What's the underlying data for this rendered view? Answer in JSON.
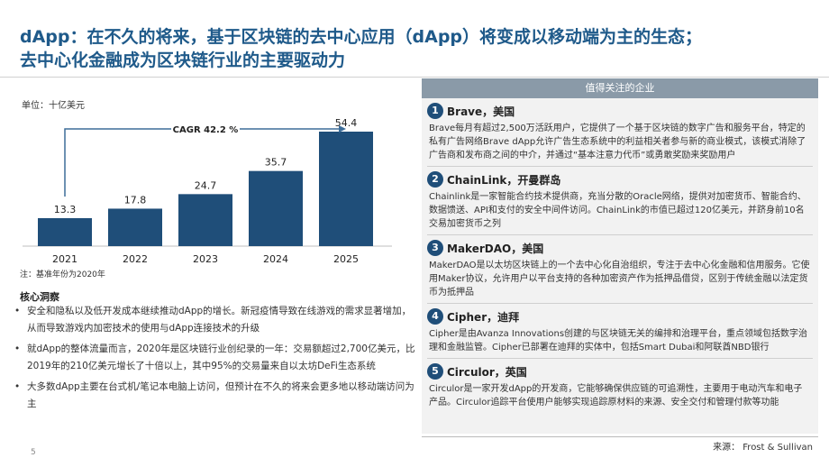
{
  "title": {
    "line1": "dApp：在不久的将来，基于区块链的去中心应用（dApp）将变成以移动端为主的生态；",
    "line2": "去中心化金融成为区块链行业的主要驱动力"
  },
  "unit": "单位：十亿美元",
  "note": "注：基准年份为2020年",
  "chart_data": {
    "type": "bar",
    "categories": [
      "2021",
      "2022",
      "2023",
      "2024",
      "2025"
    ],
    "values": [
      13.3,
      17.8,
      24.7,
      35.7,
      54.4
    ],
    "annotation": "CAGR 42.2 %",
    "colors": {
      "bar": "#1f4e79",
      "arrow": "#3d6d99"
    }
  },
  "insights": {
    "title": "核心洞察",
    "bullets": [
      "安全和隐私以及低开发成本继续推动dApp的增长。新冠疫情导致在线游戏的需求显著增加，从而导致游戏内加密技术的使用与dApp连接技术的升级",
      "就dApp的整体流量而言，2020年是区块链行业创纪录的一年：交易额超过2,700亿美元，比2019年的210亿美元增长了十倍以上，其中95%的交易量来自以太坊DeFi生态系统",
      "大多数dApp主要在台式机/笔记本电脑上访问，但预计在不久的将来会更多地以移动端访问为主"
    ]
  },
  "panel": {
    "header": "值得关注的企业",
    "items": [
      {
        "num": "1",
        "name": "Brave，美国",
        "desc": "Brave每月有超过2,500万活跃用户，它提供了一个基于区块链的数字广告和服务平台，特定的私有广告网络Brave dApp允许广告生态系统中的利益相关者参与新的商业模式，该模式消除了广告商和发布商之间的中介，并通过“基本注意力代币”或勇敢奖励来奖励用户"
      },
      {
        "num": "2",
        "name": "ChainLink，开曼群岛",
        "desc": "Chainlink是一家智能合约技术提供商，充当分散的Oracle网络，提供对加密货币、智能合约、数据馈送、API和支付的安全中间件访问。ChainLink的市值已超过120亿美元，并跻身前10名交易加密货币之列"
      },
      {
        "num": "3",
        "name": "MakerDAO，美国",
        "desc": "MakerDAO是以太坊区块链上的一个去中心化自治组织，专注于去中心化金融和信用服务。它使用Maker协议，允许用户以平台支持的各种加密资产作为抵押品借贷，区别于传统金融以法定货币为抵押品"
      },
      {
        "num": "4",
        "name": "Cipher，迪拜",
        "desc": "Cipher是由Avanza Innovations创建的与区块链无关的编排和治理平台，重点领域包括数字治理和金融监管。Cipher已部署在迪拜的实体中，包括Smart Dubai和阿联酋NBD银行"
      },
      {
        "num": "5",
        "name": "Circulor，英国",
        "desc": "Circulor是一家开发dApp的开发商，它能够确保供应链的可追溯性，主要用于电动汽车和电子产品。Circulor追踪平台使用户能够实现追踪原材料的来源、安全交付和管理付款等功能"
      }
    ]
  },
  "source": "来源： Frost & Sullivan",
  "page_number": "5"
}
